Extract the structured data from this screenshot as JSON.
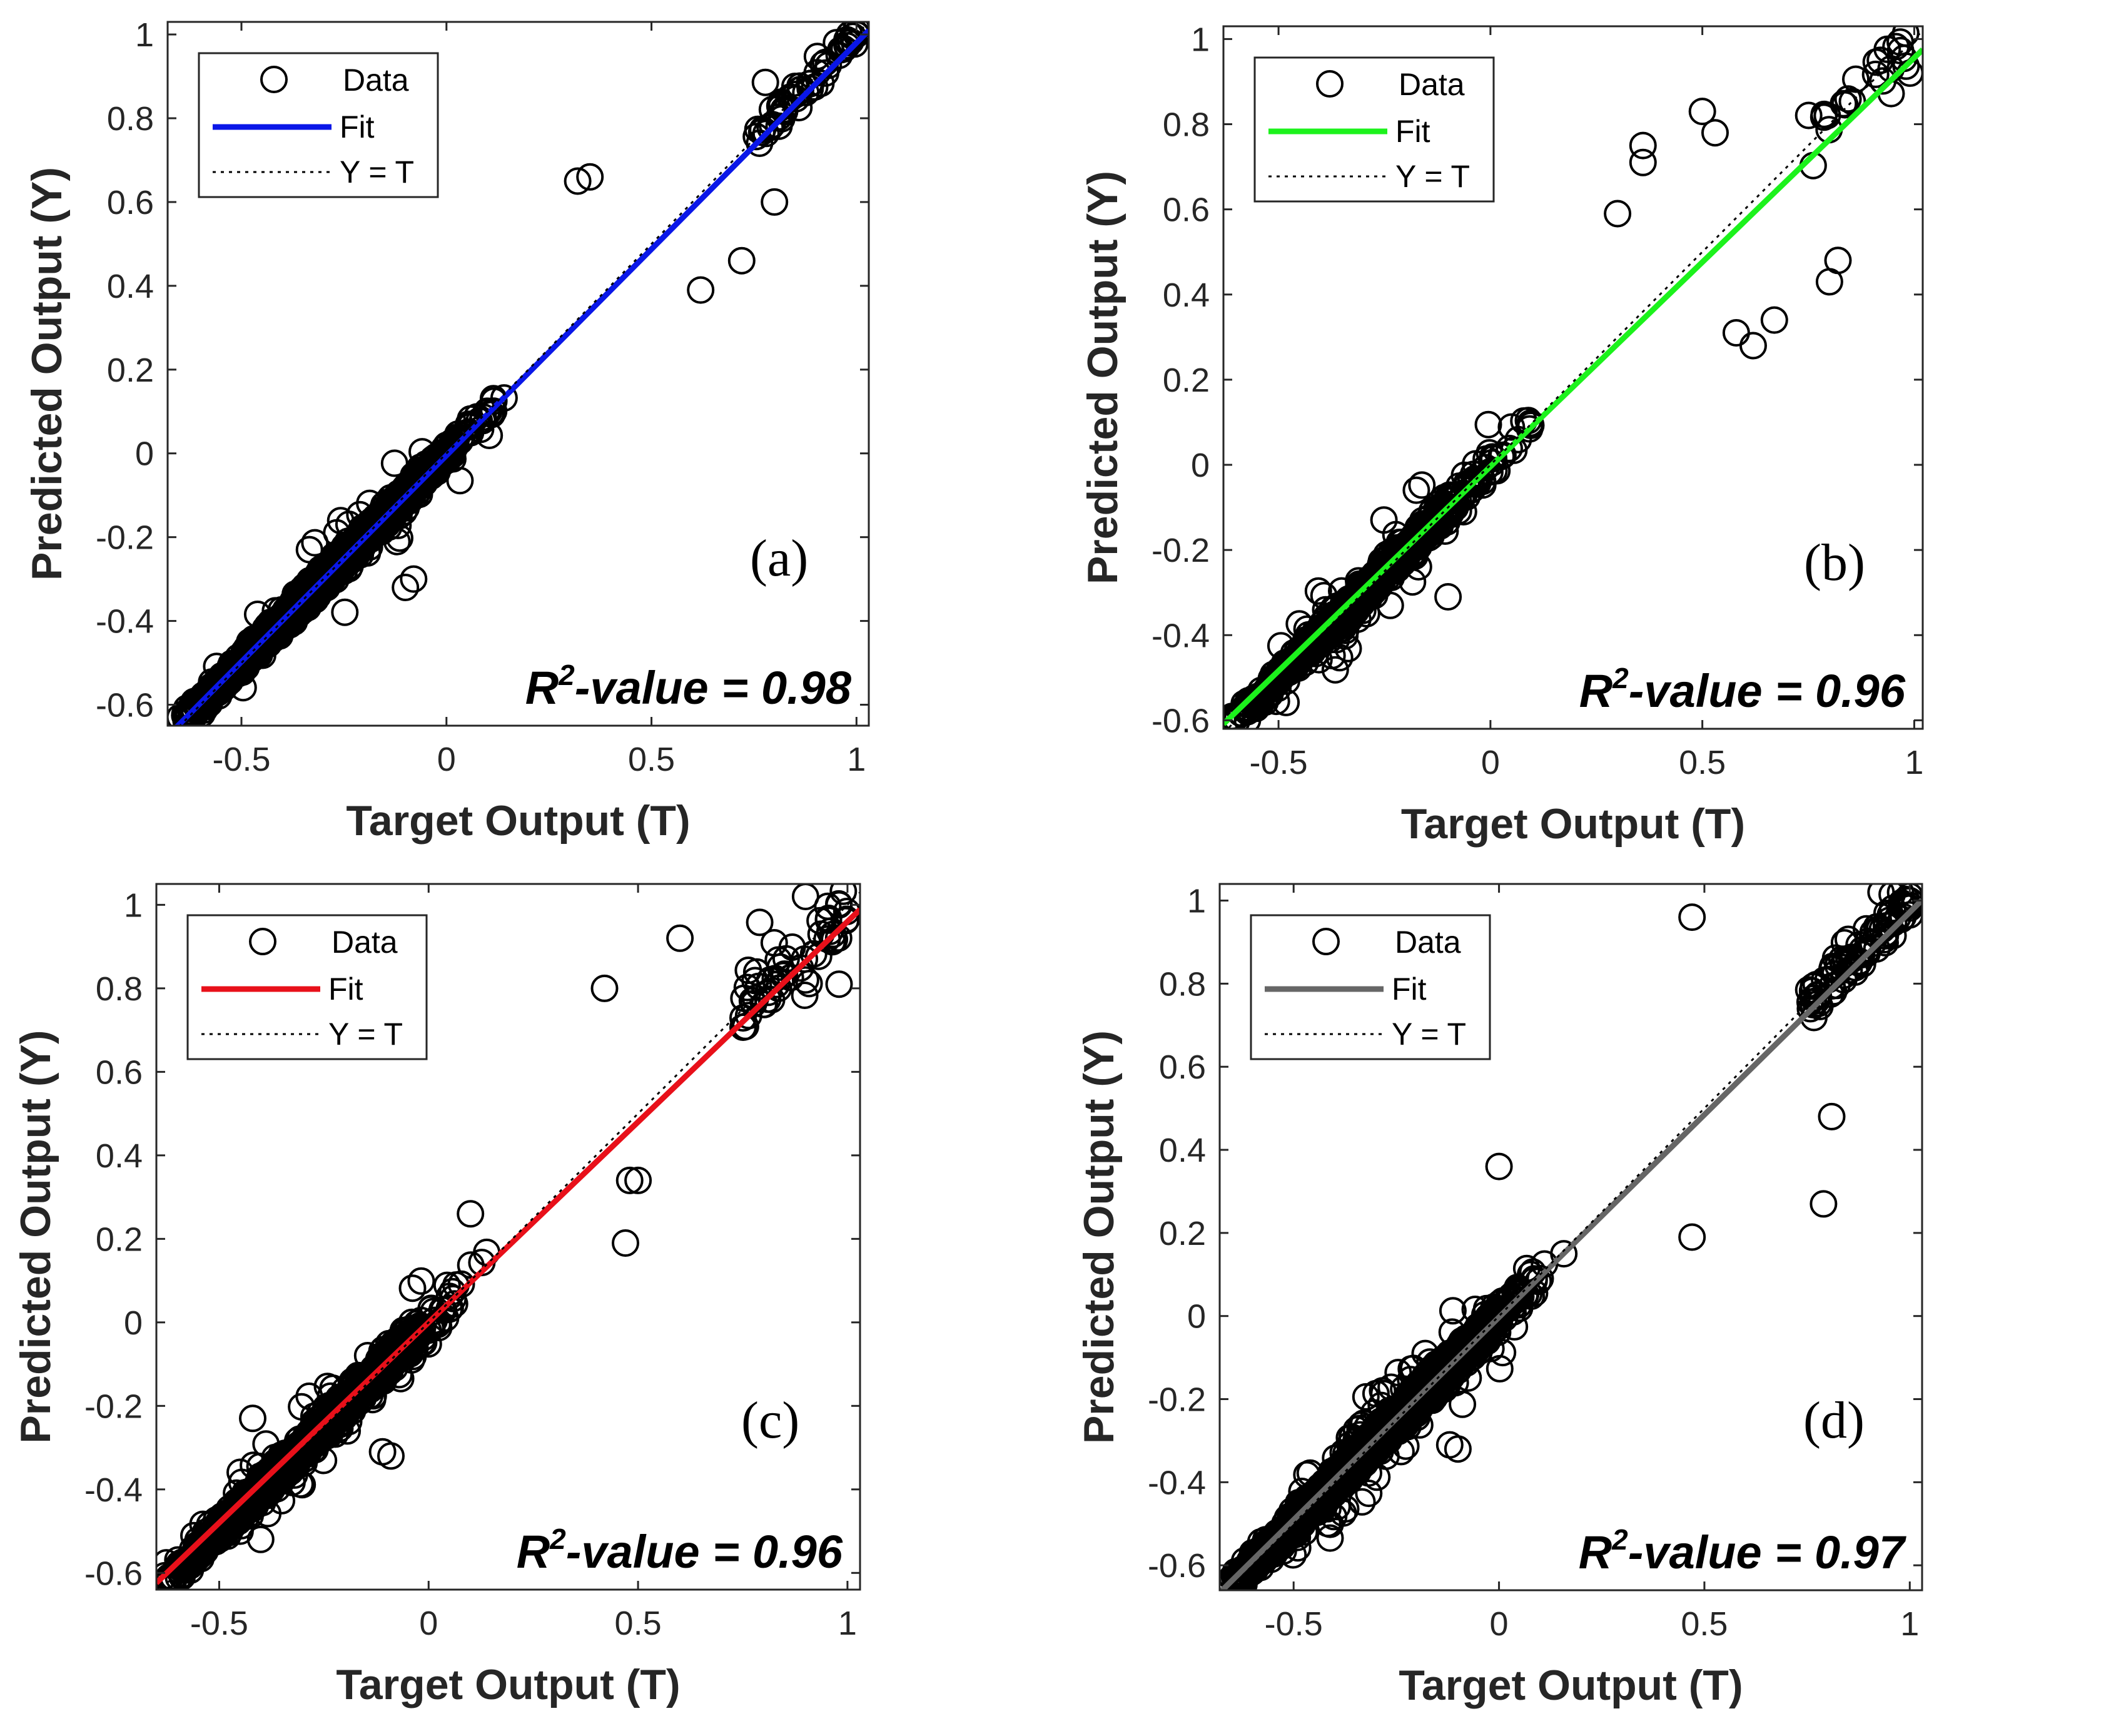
{
  "chart_data": [
    {
      "type": "scatter",
      "panel_label": "(a)",
      "xlabel": "Target Output (T)",
      "ylabel": "Predicted Output (Y)",
      "xlim": [
        -0.68,
        1.03
      ],
      "ylim": [
        -0.65,
        1.03
      ],
      "xticks": [
        -0.5,
        0,
        0.5,
        1
      ],
      "xtick_labels": [
        "-0.5",
        "0",
        "0.5",
        "1"
      ],
      "yticks": [
        -0.6,
        -0.4,
        -0.2,
        0,
        0.2,
        0.4,
        0.6,
        0.8,
        1
      ],
      "ytick_labels": [
        "-0.6",
        "-0.4",
        "-0.2",
        "0",
        "0.2",
        "0.4",
        "0.6",
        "0.8",
        "1"
      ],
      "legend": {
        "data": "Data",
        "fit": "Fit",
        "identity": "Y = T",
        "position": "top-left"
      },
      "fit_color": "#0a17e8",
      "fit": {
        "slope": 0.985,
        "intercept": -0.005
      },
      "r2_prefix": "R",
      "r2_exp": "2",
      "r2_suffix": "-value = 0.98",
      "r2_value": 0.98,
      "scatter": {
        "points": 1800,
        "spread_low": 0.022,
        "spread_high": 0.03,
        "outlier_fraction": 0.03,
        "seed": 11
      },
      "highlighted_points": [
        [
          -0.65,
          -0.63
        ],
        [
          -0.62,
          -0.62
        ],
        [
          1.0,
          1.0
        ],
        [
          0.98,
          0.98
        ],
        [
          -0.1,
          -0.32
        ],
        [
          -0.08,
          -0.3
        ],
        [
          0.62,
          0.39
        ],
        [
          0.72,
          0.46
        ],
        [
          0.8,
          0.6
        ],
        [
          0.32,
          0.65
        ],
        [
          0.35,
          0.66
        ]
      ]
    },
    {
      "type": "scatter",
      "panel_label": "(b)",
      "xlabel": "Target Output (T)",
      "ylabel": "Predicted Output (Y)",
      "xlim": [
        -0.63,
        1.02
      ],
      "ylim": [
        -0.62,
        1.03
      ],
      "xticks": [
        -0.5,
        0,
        0.5,
        1
      ],
      "xtick_labels": [
        "-0.5",
        "0",
        "0.5",
        "1"
      ],
      "yticks": [
        -0.6,
        -0.4,
        -0.2,
        0,
        0.2,
        0.4,
        0.6,
        0.8,
        1
      ],
      "ytick_labels": [
        "-0.6",
        "-0.4",
        "-0.2",
        "0",
        "0.2",
        "0.4",
        "0.6",
        "0.8",
        "1"
      ],
      "legend": {
        "data": "Data",
        "fit": "Fit",
        "identity": "Y = T",
        "position": "top-left"
      },
      "fit_color": "#1cf21c",
      "fit": {
        "slope": 0.96,
        "intercept": -0.004
      },
      "r2_prefix": "R",
      "r2_exp": "2",
      "r2_suffix": "-value = 0.96",
      "r2_value": 0.96,
      "scatter": {
        "points": 700,
        "spread_low": 0.025,
        "spread_high": 0.09,
        "outlier_fraction": 0.05,
        "seed": 23
      },
      "highlighted_points": [
        [
          -0.58,
          -0.57
        ],
        [
          -0.55,
          -0.55
        ],
        [
          -0.52,
          -0.52
        ],
        [
          0.92,
          0.95
        ],
        [
          0.99,
          0.92
        ],
        [
          0.36,
          0.75
        ],
        [
          0.36,
          0.71
        ],
        [
          0.5,
          0.83
        ],
        [
          0.53,
          0.78
        ],
        [
          0.58,
          0.31
        ],
        [
          0.62,
          0.28
        ],
        [
          0.67,
          0.34
        ],
        [
          0.82,
          0.48
        ],
        [
          0.8,
          0.43
        ],
        [
          -0.1,
          -0.31
        ],
        [
          0.3,
          0.59
        ]
      ]
    },
    {
      "type": "scatter",
      "panel_label": "(c)",
      "xlabel": "Target Output (T)",
      "ylabel": "Predicted Output (Y)",
      "xlim": [
        -0.65,
        1.03
      ],
      "ylim": [
        -0.64,
        1.05
      ],
      "xticks": [
        -0.5,
        0,
        0.5,
        1
      ],
      "xtick_labels": [
        "-0.5",
        "0",
        "0.5",
        "1"
      ],
      "yticks": [
        -0.6,
        -0.4,
        -0.2,
        0,
        0.2,
        0.4,
        0.6,
        0.8,
        1
      ],
      "ytick_labels": [
        "-0.6",
        "-0.4",
        "-0.2",
        "0",
        "0.2",
        "0.4",
        "0.6",
        "0.8",
        "1"
      ],
      "legend": {
        "data": "Data",
        "fit": "Fit",
        "identity": "Y = T",
        "position": "top-left"
      },
      "fit_color": "#e8101a",
      "fit": {
        "slope": 0.96,
        "intercept": 0.0
      },
      "r2_prefix": "R",
      "r2_exp": "2",
      "r2_suffix": "-value = 0.96",
      "r2_value": 0.96,
      "scatter": {
        "points": 1100,
        "spread_low": 0.028,
        "spread_high": 0.095,
        "outlier_fraction": 0.05,
        "seed": 37
      },
      "highlighted_points": [
        [
          -0.63,
          -0.63
        ],
        [
          -0.62,
          -0.61
        ],
        [
          -0.45,
          -0.5
        ],
        [
          0.9,
          1.02
        ],
        [
          0.98,
          1.0
        ],
        [
          0.98,
          0.81
        ],
        [
          0.9,
          0.82
        ],
        [
          0.6,
          0.92
        ],
        [
          0.42,
          0.8
        ],
        [
          0.5,
          0.34
        ],
        [
          0.48,
          0.34
        ],
        [
          0.47,
          0.19
        ],
        [
          -0.11,
          -0.31
        ],
        [
          -0.09,
          -0.32
        ],
        [
          -0.42,
          -0.23
        ],
        [
          0.1,
          0.26
        ]
      ]
    },
    {
      "type": "scatter",
      "panel_label": "(d)",
      "xlabel": "Target Output (T)",
      "ylabel": "Predicted Output (Y)",
      "xlim": [
        -0.68,
        1.03
      ],
      "ylim": [
        -0.66,
        1.04
      ],
      "xticks": [
        -0.5,
        0,
        0.5,
        1
      ],
      "xtick_labels": [
        "-0.5",
        "0",
        "0.5",
        "1"
      ],
      "yticks": [
        -0.6,
        -0.4,
        -0.2,
        0,
        0.2,
        0.4,
        0.6,
        0.8,
        1
      ],
      "ytick_labels": [
        "-0.6",
        "-0.4",
        "-0.2",
        "0",
        "0.2",
        "0.4",
        "0.6",
        "0.8",
        "1"
      ],
      "legend": {
        "data": "Data",
        "fit": "Fit",
        "identity": "Y = T",
        "position": "top-left"
      },
      "fit_color": "#666666",
      "fit": {
        "slope": 0.975,
        "intercept": -0.003
      },
      "r2_prefix": "R",
      "r2_exp": "2",
      "r2_suffix": "-value = 0.97",
      "r2_value": 0.97,
      "scatter": {
        "points": 2600,
        "spread_low": 0.025,
        "spread_high": 0.06,
        "outlier_fraction": 0.04,
        "seed": 53
      },
      "highlighted_points": [
        [
          -0.65,
          -0.63
        ],
        [
          -0.63,
          -0.62
        ],
        [
          -0.6,
          -0.57
        ],
        [
          1.0,
          1.0
        ],
        [
          0.98,
          0.99
        ],
        [
          0.93,
          1.02
        ],
        [
          0.47,
          0.96
        ],
        [
          0.79,
          0.27
        ],
        [
          0.81,
          0.48
        ],
        [
          -0.1,
          -0.32
        ],
        [
          -0.12,
          -0.31
        ],
        [
          0.47,
          0.19
        ],
        [
          0.0,
          0.36
        ]
      ]
    }
  ]
}
